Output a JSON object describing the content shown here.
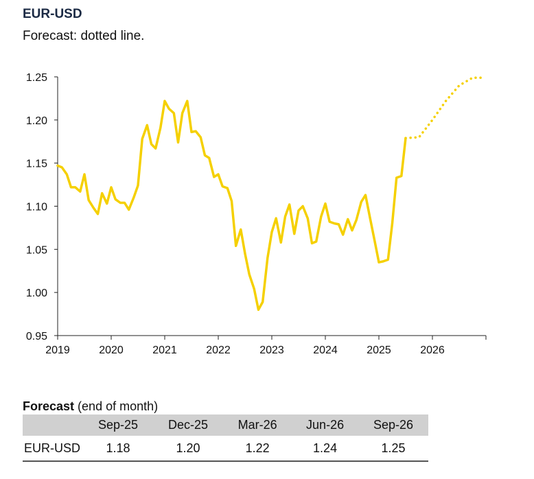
{
  "header": {
    "title": "EUR-USD",
    "subtitle": "Forecast: dotted line."
  },
  "colors": {
    "series": "#f5d000",
    "axis": "#222222",
    "table_header": "#d0d0d0"
  },
  "chart_data": {
    "type": "line",
    "title": "EUR-USD",
    "subtitle": "Forecast: dotted line.",
    "xlim": [
      2019.0,
      2027.0
    ],
    "ylim": [
      0.95,
      1.25
    ],
    "y_ticks": [
      0.95,
      1.0,
      1.05,
      1.1,
      1.15,
      1.2,
      1.25
    ],
    "y_tick_labels": [
      "0.95",
      "1.00",
      "1.05",
      "1.10",
      "1.15",
      "1.20",
      "1.25"
    ],
    "x_ticks": [
      2019,
      2020,
      2021,
      2022,
      2023,
      2024,
      2025,
      2026
    ],
    "x_tick_labels": [
      "2019",
      "2020",
      "2021",
      "2022",
      "2023",
      "2024",
      "2025",
      "2026"
    ],
    "grid": false,
    "series": [
      {
        "style": "solid",
        "x": [
          2019.0,
          2019.08,
          2019.17,
          2019.25,
          2019.33,
          2019.42,
          2019.5,
          2019.58,
          2019.67,
          2019.75,
          2019.83,
          2019.92,
          2020.0,
          2020.08,
          2020.17,
          2020.25,
          2020.33,
          2020.42,
          2020.5,
          2020.58,
          2020.67,
          2020.75,
          2020.83,
          2020.92,
          2021.0,
          2021.08,
          2021.17,
          2021.25,
          2021.33,
          2021.42,
          2021.5,
          2021.58,
          2021.67,
          2021.75,
          2021.83,
          2021.92,
          2022.0,
          2022.08,
          2022.17,
          2022.25,
          2022.33,
          2022.42,
          2022.5,
          2022.58,
          2022.67,
          2022.75,
          2022.83,
          2022.92,
          2023.0,
          2023.08,
          2023.17,
          2023.25,
          2023.33,
          2023.42,
          2023.5,
          2023.58,
          2023.67,
          2023.75,
          2023.83,
          2023.92,
          2024.0,
          2024.08,
          2024.17,
          2024.25,
          2024.33,
          2024.42,
          2024.5,
          2024.58,
          2024.67,
          2024.75,
          2024.83,
          2024.92,
          2025.0,
          2025.08,
          2025.17,
          2025.25,
          2025.33,
          2025.42,
          2025.5
        ],
        "y": [
          1.147,
          1.145,
          1.137,
          1.122,
          1.122,
          1.117,
          1.137,
          1.107,
          1.098,
          1.091,
          1.115,
          1.103,
          1.122,
          1.108,
          1.104,
          1.104,
          1.096,
          1.11,
          1.124,
          1.178,
          1.194,
          1.172,
          1.167,
          1.191,
          1.222,
          1.213,
          1.208,
          1.174,
          1.208,
          1.222,
          1.186,
          1.187,
          1.18,
          1.159,
          1.156,
          1.134,
          1.137,
          1.123,
          1.121,
          1.106,
          1.054,
          1.073,
          1.045,
          1.021,
          1.004,
          0.98,
          0.989,
          1.04,
          1.07,
          1.086,
          1.058,
          1.088,
          1.102,
          1.068,
          1.095,
          1.1,
          1.086,
          1.057,
          1.059,
          1.088,
          1.103,
          1.082,
          1.08,
          1.079,
          1.067,
          1.085,
          1.072,
          1.084,
          1.105,
          1.113,
          1.088,
          1.06,
          1.035,
          1.036,
          1.038,
          1.08,
          1.133,
          1.135,
          1.179
        ]
      },
      {
        "style": "dotted",
        "x": [
          2025.5,
          2025.75,
          2026.0,
          2026.25,
          2026.5,
          2026.75,
          2026.9
        ],
        "y": [
          1.179,
          1.18,
          1.2,
          1.222,
          1.24,
          1.249,
          1.249
        ]
      }
    ]
  },
  "forecast_table": {
    "title_bold": "Forecast",
    "title_rest": " (end of month)",
    "columns": [
      "",
      "Sep-25",
      "Dec-25",
      "Mar-26",
      "Jun-26",
      "Sep-26"
    ],
    "rows": [
      {
        "label": "EUR-USD",
        "values": [
          "1.18",
          "1.20",
          "1.22",
          "1.24",
          "1.25"
        ]
      }
    ]
  }
}
